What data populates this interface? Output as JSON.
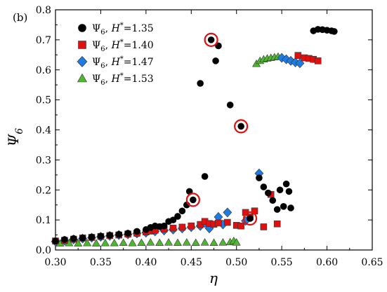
{
  "chart_data": {
    "type": "scatter",
    "panel_label": "(b)",
    "xlabel": "η",
    "ylabel": "Ψ",
    "ylabel_sub": "6",
    "xlim": [
      0.3,
      0.65
    ],
    "ylim": [
      0.0,
      0.8
    ],
    "xticks": [
      "0.30",
      "0.35",
      "0.40",
      "0.45",
      "0.50",
      "0.55",
      "0.60",
      "0.65"
    ],
    "yticks": [
      "0.0",
      "0.1",
      "0.2",
      "0.3",
      "0.4",
      "0.5",
      "0.6",
      "0.7",
      "0.8"
    ],
    "legend_position": "top-left",
    "series": [
      {
        "name": "Ψ6, H*=1.35",
        "label_psi": "Ψ",
        "label_sub": "6",
        "label_h": "H",
        "label_val": "=1.35",
        "marker": "circle",
        "color": "#000000",
        "points": [
          [
            0.3,
            0.03
          ],
          [
            0.31,
            0.035
          ],
          [
            0.32,
            0.038
          ],
          [
            0.33,
            0.04
          ],
          [
            0.34,
            0.043
          ],
          [
            0.35,
            0.046
          ],
          [
            0.36,
            0.049
          ],
          [
            0.37,
            0.052
          ],
          [
            0.38,
            0.056
          ],
          [
            0.39,
            0.062
          ],
          [
            0.4,
            0.068
          ],
          [
            0.405,
            0.075
          ],
          [
            0.41,
            0.08
          ],
          [
            0.415,
            0.078
          ],
          [
            0.42,
            0.08
          ],
          [
            0.425,
            0.095
          ],
          [
            0.43,
            0.1
          ],
          [
            0.435,
            0.112
          ],
          [
            0.44,
            0.13
          ],
          [
            0.445,
            0.15
          ],
          [
            0.448,
            0.195
          ],
          [
            0.452,
            0.167
          ],
          [
            0.46,
            0.555
          ],
          [
            0.465,
            0.245
          ],
          [
            0.472,
            0.7
          ],
          [
            0.477,
            0.63
          ],
          [
            0.48,
            0.68
          ],
          [
            0.493,
            0.483
          ],
          [
            0.505,
            0.412
          ],
          [
            0.515,
            0.105
          ],
          [
            0.525,
            0.24
          ],
          [
            0.53,
            0.21
          ],
          [
            0.535,
            0.19
          ],
          [
            0.54,
            0.165
          ],
          [
            0.545,
            0.135
          ],
          [
            0.548,
            0.2
          ],
          [
            0.552,
            0.145
          ],
          [
            0.555,
            0.22
          ],
          [
            0.558,
            0.195
          ],
          [
            0.56,
            0.14
          ],
          [
            0.585,
            0.73
          ],
          [
            0.59,
            0.735
          ],
          [
            0.595,
            0.734
          ],
          [
            0.6,
            0.732
          ],
          [
            0.605,
            0.73
          ],
          [
            0.608,
            0.728
          ]
        ]
      },
      {
        "name": "Ψ6, H*=1.40",
        "label_psi": "Ψ",
        "label_sub": "6",
        "label_h": "H",
        "label_val": "=1.40",
        "marker": "square",
        "color": "#e01010",
        "points": [
          [
            0.3,
            0.03
          ],
          [
            0.31,
            0.032
          ],
          [
            0.32,
            0.036
          ],
          [
            0.33,
            0.04
          ],
          [
            0.34,
            0.042
          ],
          [
            0.35,
            0.045
          ],
          [
            0.36,
            0.048
          ],
          [
            0.37,
            0.05
          ],
          [
            0.38,
            0.053
          ],
          [
            0.39,
            0.056
          ],
          [
            0.4,
            0.06
          ],
          [
            0.405,
            0.063
          ],
          [
            0.41,
            0.066
          ],
          [
            0.42,
            0.07
          ],
          [
            0.43,
            0.073
          ],
          [
            0.44,
            0.076
          ],
          [
            0.45,
            0.08
          ],
          [
            0.46,
            0.085
          ],
          [
            0.465,
            0.095
          ],
          [
            0.47,
            0.088
          ],
          [
            0.475,
            0.086
          ],
          [
            0.48,
            0.09
          ],
          [
            0.49,
            0.092
          ],
          [
            0.5,
            0.082
          ],
          [
            0.505,
            0.08
          ],
          [
            0.51,
            0.125
          ],
          [
            0.515,
            0.11
          ],
          [
            0.52,
            0.13
          ],
          [
            0.53,
            0.077
          ],
          [
            0.538,
            0.185
          ],
          [
            0.545,
            0.087
          ],
          [
            0.568,
            0.648
          ],
          [
            0.575,
            0.64
          ],
          [
            0.58,
            0.638
          ],
          [
            0.585,
            0.635
          ],
          [
            0.59,
            0.63
          ]
        ]
      },
      {
        "name": "Ψ6, H*=1.47",
        "label_psi": "Ψ",
        "label_sub": "6",
        "label_h": "H",
        "label_val": "=1.47",
        "marker": "diamond",
        "color": "#1e7be0",
        "points": [
          [
            0.3,
            0.028
          ],
          [
            0.31,
            0.031
          ],
          [
            0.32,
            0.035
          ],
          [
            0.33,
            0.038
          ],
          [
            0.34,
            0.041
          ],
          [
            0.35,
            0.044
          ],
          [
            0.36,
            0.047
          ],
          [
            0.37,
            0.05
          ],
          [
            0.38,
            0.052
          ],
          [
            0.39,
            0.055
          ],
          [
            0.4,
            0.058
          ],
          [
            0.41,
            0.062
          ],
          [
            0.42,
            0.065
          ],
          [
            0.43,
            0.068
          ],
          [
            0.44,
            0.072
          ],
          [
            0.45,
            0.076
          ],
          [
            0.46,
            0.08
          ],
          [
            0.465,
            0.09
          ],
          [
            0.47,
            0.072
          ],
          [
            0.48,
            0.11
          ],
          [
            0.485,
            0.085
          ],
          [
            0.49,
            0.125
          ],
          [
            0.51,
            0.097
          ],
          [
            0.525,
            0.255
          ],
          [
            0.55,
            0.64
          ],
          [
            0.555,
            0.635
          ],
          [
            0.56,
            0.63
          ],
          [
            0.565,
            0.625
          ],
          [
            0.57,
            0.622
          ]
        ]
      },
      {
        "name": "Ψ6, H*=1.53",
        "label_psi": "Ψ",
        "label_sub": "6",
        "label_h": "H",
        "label_val": "=1.53",
        "marker": "triangle",
        "color": "#4db82e",
        "points": [
          [
            0.305,
            0.022
          ],
          [
            0.315,
            0.023
          ],
          [
            0.325,
            0.022
          ],
          [
            0.335,
            0.023
          ],
          [
            0.345,
            0.022
          ],
          [
            0.355,
            0.023
          ],
          [
            0.365,
            0.023
          ],
          [
            0.375,
            0.024
          ],
          [
            0.385,
            0.023
          ],
          [
            0.395,
            0.024
          ],
          [
            0.405,
            0.025
          ],
          [
            0.415,
            0.024
          ],
          [
            0.425,
            0.025
          ],
          [
            0.435,
            0.024
          ],
          [
            0.445,
            0.025
          ],
          [
            0.455,
            0.024
          ],
          [
            0.465,
            0.025
          ],
          [
            0.475,
            0.024
          ],
          [
            0.485,
            0.025
          ],
          [
            0.493,
            0.026
          ],
          [
            0.497,
            0.03
          ],
          [
            0.5,
            0.025
          ],
          [
            0.522,
            0.62
          ],
          [
            0.526,
            0.63
          ],
          [
            0.53,
            0.635
          ],
          [
            0.534,
            0.638
          ],
          [
            0.538,
            0.64
          ],
          [
            0.542,
            0.642
          ],
          [
            0.546,
            0.644
          ]
        ]
      }
    ],
    "highlighted_points": [
      [
        0.472,
        0.7
      ],
      [
        0.505,
        0.412
      ],
      [
        0.452,
        0.167
      ],
      [
        0.515,
        0.105
      ]
    ],
    "highlight_color": "#e01010"
  }
}
